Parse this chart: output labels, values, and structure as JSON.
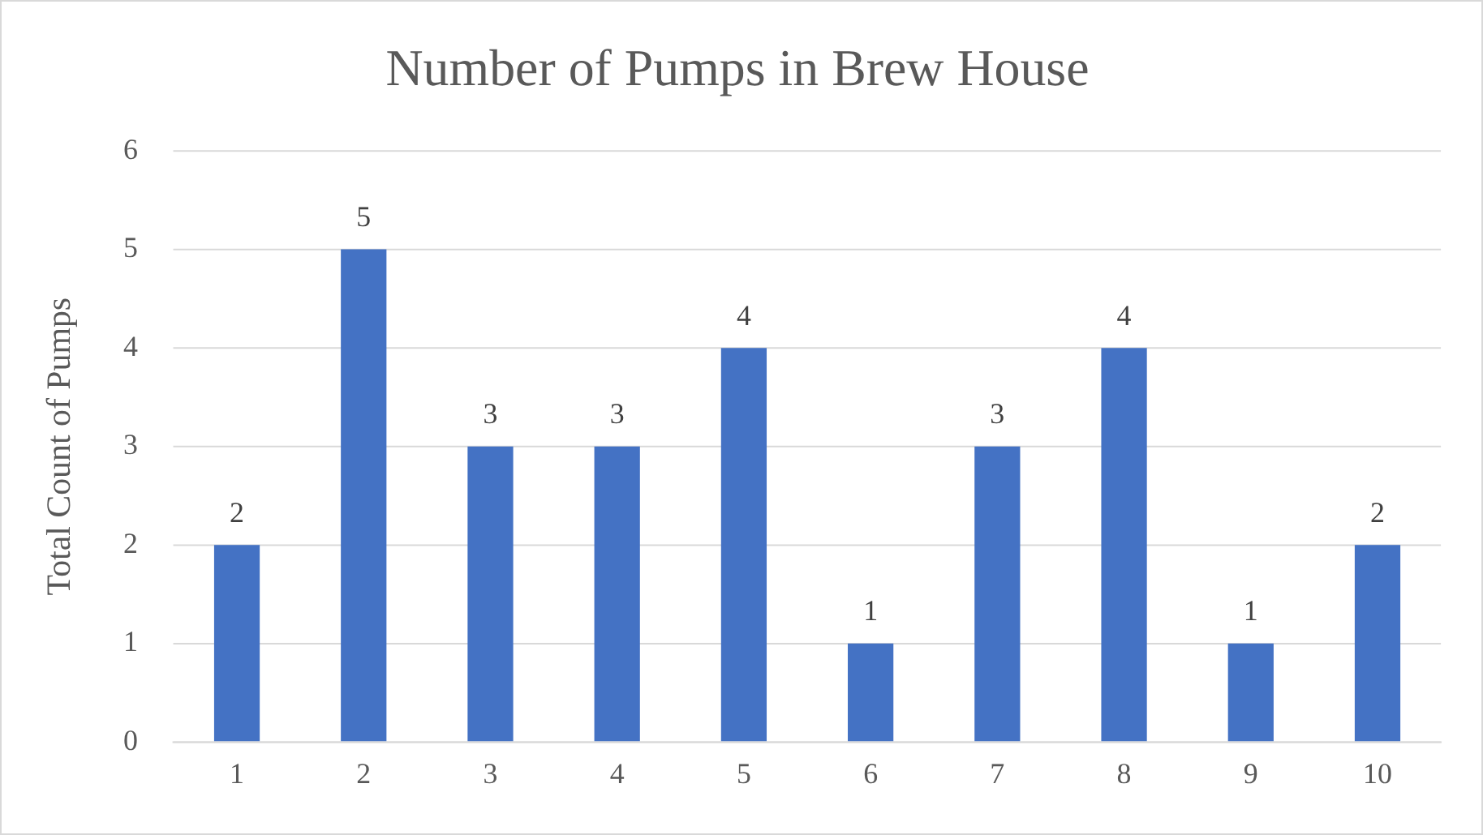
{
  "chart_data": {
    "type": "bar",
    "title": "Number of Pumps in Brew House",
    "ylabel": "Total Count of Pumps",
    "categories": [
      "1",
      "2",
      "3",
      "4",
      "5",
      "6",
      "7",
      "8",
      "9",
      "10"
    ],
    "values": [
      2,
      5,
      3,
      3,
      4,
      1,
      3,
      4,
      1,
      2
    ],
    "color": "#4472c4",
    "ylim": [
      0,
      6
    ],
    "yticks": [
      0,
      1,
      2,
      3,
      4,
      5,
      6
    ],
    "grid": "y",
    "legend": false,
    "data_labels": true
  }
}
